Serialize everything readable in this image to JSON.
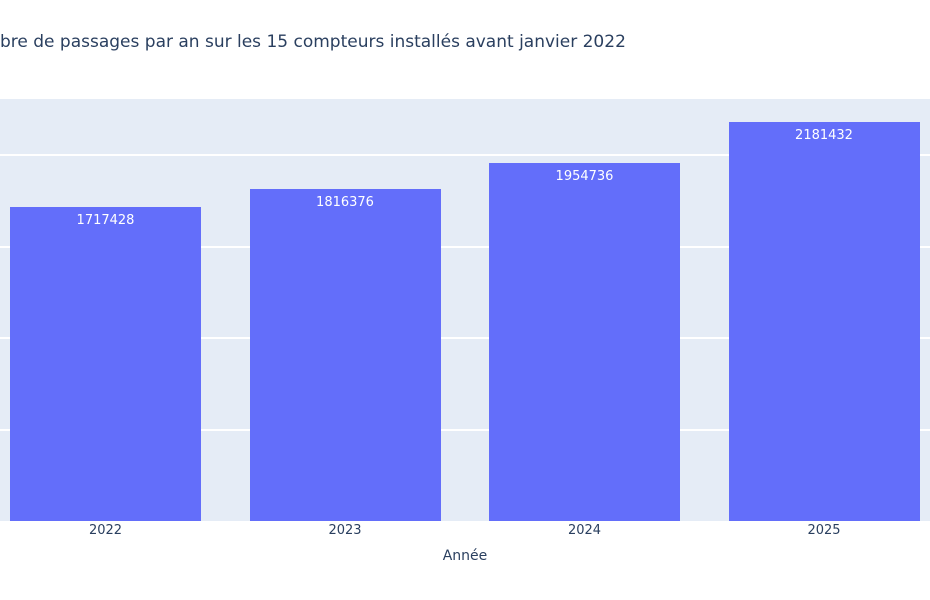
{
  "chart_data": {
    "type": "bar",
    "title": "bre de passages par an sur les 15 compteurs installés avant janvier 2022",
    "xlabel": "Année",
    "ylabel": "",
    "categories": [
      "2022",
      "2023",
      "2024",
      "2025"
    ],
    "values": [
      1717428,
      1816376,
      1954736,
      2181432
    ],
    "value_labels_position": "inside-top",
    "ylim": [
      0,
      2306000
    ],
    "yticks": [
      500000,
      1000000,
      1500000,
      2000000
    ],
    "grid": "horizontal",
    "legend_position": "none",
    "colors": {
      "bar": "#636EFA",
      "plot_background": "#E5ECF6",
      "gridline": "#FFFFFF",
      "text": "#2A3F5F",
      "bar_label_text": "#FFFFFF",
      "page_background": "#FFFFFF"
    }
  }
}
